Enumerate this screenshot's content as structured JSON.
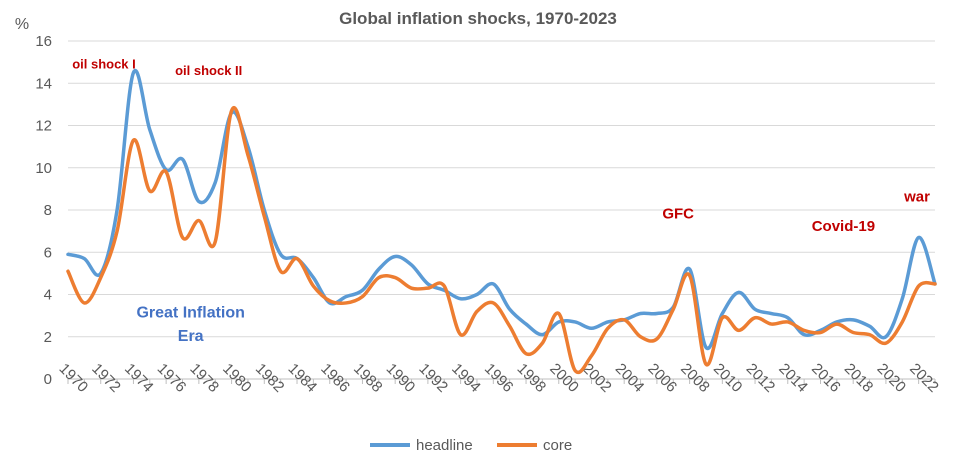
{
  "chart_data": {
    "type": "line",
    "title": "Global inflation shocks, 1970-2023",
    "ylabel": "%",
    "xlabel": "",
    "ylim": [
      0,
      16
    ],
    "yticks": [
      0,
      2,
      4,
      6,
      8,
      10,
      12,
      14,
      16
    ],
    "xlim": [
      1970,
      2023
    ],
    "xticks": [
      "1970",
      "1972",
      "1974",
      "1976",
      "1978",
      "1980",
      "1982",
      "1984",
      "1986",
      "1988",
      "1990",
      "1992",
      "1994",
      "1996",
      "1998",
      "2000",
      "2002",
      "2004",
      "2006",
      "2008",
      "2010",
      "2012",
      "2014",
      "2016",
      "2018",
      "2020",
      "2022"
    ],
    "grid": "horizontal",
    "legend": "bottom",
    "x": [
      1970,
      1971,
      1972,
      1973,
      1974,
      1975,
      1976,
      1977,
      1978,
      1979,
      1980,
      1981,
      1982,
      1983,
      1984,
      1985,
      1986,
      1987,
      1988,
      1989,
      1990,
      1991,
      1992,
      1993,
      1994,
      1995,
      1996,
      1997,
      1998,
      1999,
      2000,
      2001,
      2002,
      2003,
      2004,
      2005,
      2006,
      2007,
      2008,
      2009,
      2010,
      2011,
      2012,
      2013,
      2014,
      2015,
      2016,
      2017,
      2018,
      2019,
      2020,
      2021,
      2022,
      2023
    ],
    "series": [
      {
        "name": "headline",
        "color": "#5B9BD5",
        "values": [
          5.9,
          5.7,
          5.0,
          8.0,
          14.5,
          11.8,
          9.9,
          10.4,
          8.4,
          9.3,
          12.6,
          11.0,
          8.0,
          5.9,
          5.7,
          4.8,
          3.6,
          3.9,
          4.2,
          5.2,
          5.8,
          5.4,
          4.5,
          4.2,
          3.8,
          4.0,
          4.5,
          3.3,
          2.6,
          2.1,
          2.7,
          2.7,
          2.4,
          2.7,
          2.8,
          3.1,
          3.1,
          3.4,
          5.2,
          1.5,
          3.1,
          4.1,
          3.3,
          3.1,
          2.9,
          2.1,
          2.3,
          2.7,
          2.8,
          2.5,
          2.0,
          3.8,
          6.7,
          4.5
        ]
      },
      {
        "name": "core",
        "color": "#ED7D31",
        "values": [
          5.1,
          3.6,
          4.8,
          7.0,
          11.3,
          8.9,
          9.8,
          6.7,
          7.5,
          6.5,
          12.7,
          10.6,
          7.7,
          5.1,
          5.7,
          4.4,
          3.7,
          3.6,
          3.9,
          4.8,
          4.8,
          4.3,
          4.3,
          4.4,
          2.1,
          3.2,
          3.6,
          2.5,
          1.2,
          1.7,
          3.1,
          0.4,
          1.1,
          2.4,
          2.8,
          2.0,
          1.9,
          3.3,
          4.9,
          0.7,
          2.9,
          2.3,
          2.9,
          2.6,
          2.7,
          2.3,
          2.2,
          2.6,
          2.2,
          2.1,
          1.7,
          2.7,
          4.4,
          4.5
        ]
      }
    ],
    "annotations": [
      {
        "text": "oil shock I",
        "x": 1972.2,
        "y": 14.7,
        "color": "#C00000",
        "size": 13
      },
      {
        "text": "oil shock II",
        "x": 1978.6,
        "y": 14.4,
        "color": "#C00000",
        "size": 13
      },
      {
        "text": "GFC",
        "x": 2007.3,
        "y": 7.6,
        "color": "#C00000",
        "size": 15
      },
      {
        "text": "Covid-19",
        "x": 2017.4,
        "y": 7.0,
        "color": "#C00000",
        "size": 15
      },
      {
        "text": "war",
        "x": 2021.9,
        "y": 8.4,
        "color": "#C00000",
        "size": 15
      },
      {
        "text": "Great Inflation",
        "x": 1977.5,
        "y": 2.9,
        "color": "#4472C4",
        "size": 16
      },
      {
        "text": "Era",
        "x": 1977.5,
        "y": 1.8,
        "color": "#4472C4",
        "size": 16
      }
    ]
  }
}
